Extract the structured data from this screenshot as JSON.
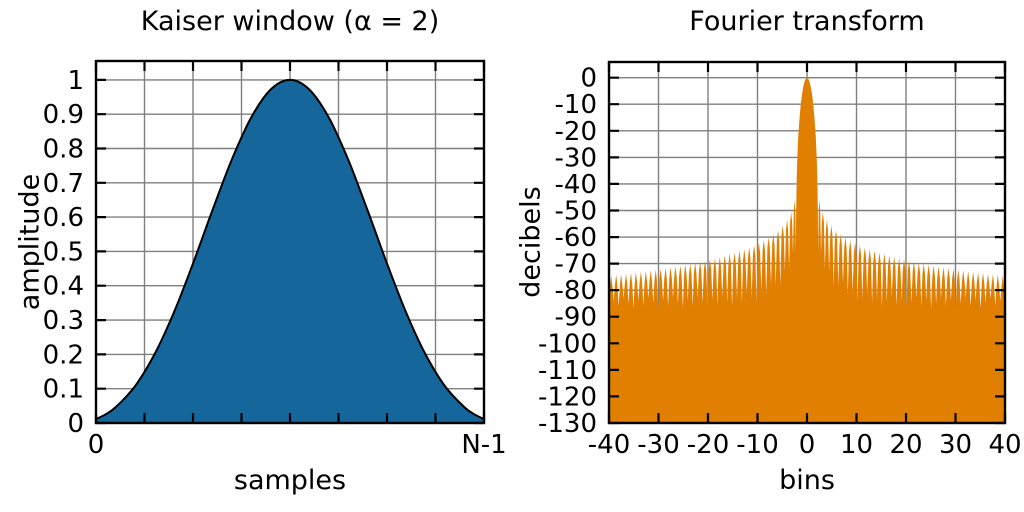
{
  "figure": {
    "background": "#ffffff",
    "text_color": "#000000",
    "grid_color": "#7f7f7f",
    "frame_color": "#000000"
  },
  "chart_data": [
    {
      "type": "area",
      "title": "Kaiser window (α = 2)",
      "xlabel": "samples",
      "ylabel": "amplitude",
      "xlim": [
        0,
        1
      ],
      "ylim": [
        0,
        1.055
      ],
      "grid": true,
      "x_grid_divisions": 8,
      "x_ticks": {
        "values": [
          0,
          1
        ],
        "labels": [
          "0",
          "N-1"
        ]
      },
      "y_ticks": {
        "values": [
          0,
          0.1,
          0.2,
          0.3,
          0.4,
          0.5,
          0.6,
          0.7,
          0.8,
          0.9,
          1
        ],
        "labels": [
          "0",
          "0.1",
          "0.2",
          "0.3",
          "0.4",
          "0.5",
          "0.6",
          "0.7",
          "0.8",
          "0.9",
          "1"
        ]
      },
      "fill_color": "#15669A",
      "line_color": "#000000",
      "series": {
        "name": "kaiser-window-alpha-2",
        "x": [
          0,
          0.025,
          0.05,
          0.1,
          0.15,
          0.2,
          0.25,
          0.3,
          0.35,
          0.4,
          0.45,
          0.5,
          0.55,
          0.6,
          0.65,
          0.7,
          0.75,
          0.8,
          0.85,
          0.9,
          0.95,
          0.975,
          1
        ],
        "y": [
          0.0115,
          0.0255,
          0.0455,
          0.1065,
          0.1984,
          0.3202,
          0.4649,
          0.6196,
          0.7675,
          0.8903,
          0.9716,
          1,
          0.9716,
          0.8903,
          0.7675,
          0.6196,
          0.4649,
          0.3202,
          0.1984,
          0.1065,
          0.0455,
          0.0255,
          0.0115
        ]
      }
    },
    {
      "type": "area",
      "title": "Fourier transform",
      "xlabel": "bins",
      "ylabel": "decibels",
      "xlim": [
        -40,
        40
      ],
      "ylim": [
        -130,
        5.9
      ],
      "grid": true,
      "x_ticks": {
        "values": [
          -40,
          -30,
          -20,
          -10,
          0,
          10,
          20,
          30,
          40
        ],
        "labels": [
          "-40",
          "-30",
          "-20",
          "-10",
          "0",
          "10",
          "20",
          "30",
          "40"
        ]
      },
      "y_ticks": {
        "values": [
          0,
          -10,
          -20,
          -30,
          -40,
          -50,
          -60,
          -70,
          -80,
          -90,
          -100,
          -110,
          -120,
          -130
        ],
        "labels": [
          "0",
          "-10",
          "-20",
          "-30",
          "-40",
          "-50",
          "-60",
          "-70",
          "-80",
          "-90",
          "-100",
          "-110",
          "-120",
          "-130"
        ]
      },
      "fill_color": "#E07F00",
      "symmetry": "even",
      "shoulder_drop_db": 4,
      "main_lobe": {
        "f": [
          0,
          0.25,
          0.5,
          0.75,
          1,
          1.25,
          1.5,
          1.75,
          1.9,
          2,
          2.1,
          2.15,
          2.2
        ],
        "db": [
          0,
          -0.36,
          -1.45,
          -3.33,
          -6.06,
          -9.82,
          -14.89,
          -21.87,
          -27.6,
          -32.6,
          -39.5,
          -44.7,
          -53.5
        ]
      },
      "sidelobes": {
        "peak_f": [
          2.5,
          3.2,
          4.03,
          4.92,
          5.85,
          6.8,
          7.76,
          8.73,
          9.71,
          10.69,
          11.67,
          12.66,
          13.65,
          14.64,
          15.63,
          16.62,
          17.61,
          18.61,
          19.6,
          20.6,
          21.59,
          22.59,
          23.58,
          24.58,
          25.58,
          26.58,
          27.57,
          28.57,
          29.57,
          30.57,
          31.56,
          32.56,
          33.56,
          34.56,
          35.56,
          36.56,
          37.55,
          38.55,
          39.55
        ],
        "peak_db": [
          -46.1,
          -50.5,
          -53.4,
          -55.6,
          -57.3,
          -58.8,
          -60.0,
          -61.1,
          -62.1,
          -63.0,
          -63.8,
          -64.5,
          -65.1,
          -65.8,
          -66.3,
          -66.9,
          -67.4,
          -67.9,
          -68.3,
          -68.8,
          -69.2,
          -69.6,
          -70.0,
          -70.3,
          -70.7,
          -71.0,
          -71.3,
          -71.6,
          -71.9,
          -72.2,
          -72.5,
          -72.8,
          -73.0,
          -73.3,
          -73.5,
          -73.8,
          -74.0,
          -74.2,
          -74.5
        ],
        "null_f": [
          2.24,
          2.83,
          3.61,
          4.47,
          5.39,
          6.32,
          7.28,
          8.25,
          9.22,
          10.2,
          11.18,
          12.17,
          13.15,
          14.14,
          15.13,
          16.12,
          17.12,
          18.11,
          19.11,
          20.1,
          21.1,
          22.09,
          23.09,
          24.08,
          25.08,
          26.08,
          27.07,
          28.07,
          29.07,
          30.07,
          31.06,
          32.06,
          33.06,
          34.06,
          35.06,
          36.06,
          37.05,
          38.05,
          39.05,
          40.05
        ],
        "null_db": [
          -65.8,
          -66.4,
          -72.3,
          -73.0,
          -78.3,
          -78.1,
          -77.6,
          -81.7,
          -80.6,
          -84.4,
          -82.9,
          -81.4,
          -84.7,
          -83.0,
          -86.2,
          -84.4,
          -82.5,
          -85.6,
          -83.7,
          -86.8,
          -84.8,
          -82.9,
          -85.9,
          -83.9,
          -86.9,
          -85.0,
          -83.0,
          -86.0,
          -84.0,
          -87.0,
          -85.0,
          -83.0,
          -86.0,
          -84.0,
          -87.0,
          -85.0,
          -83.0,
          -86.0,
          -84.0,
          -87.0
        ]
      }
    }
  ]
}
